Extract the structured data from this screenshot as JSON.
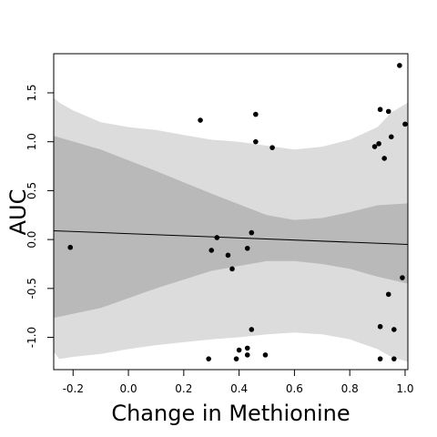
{
  "chart_data": {
    "type": "scatter",
    "title": "",
    "xlabel": "Change in Methionine",
    "ylabel": "AUC",
    "xlim": [
      -0.27,
      1.01
    ],
    "ylim": [
      -1.33,
      1.9
    ],
    "x_ticks": [
      -0.2,
      0.0,
      0.2,
      0.4,
      0.6,
      0.8,
      1.0
    ],
    "x_tick_labels": [
      "-0.2",
      "0.0",
      "0.2",
      "0.4",
      "0.6",
      "0.8",
      "1.0"
    ],
    "y_ticks": [
      -1.0,
      -0.5,
      0.0,
      0.5,
      1.0,
      1.5
    ],
    "y_tick_labels": [
      "-1.0",
      "-0.5",
      "0.0",
      "0.5",
      "1.0",
      "1.5"
    ],
    "grid": false,
    "legend": "none",
    "colors": {
      "outer_band": "#dcdcdc",
      "inner_band": "#b9b9b9",
      "points": "#000000",
      "trend_line": "#000000"
    },
    "trend_line": {
      "x": [
        -0.27,
        1.01
      ],
      "y": [
        0.09,
        -0.05
      ]
    },
    "inner_band": {
      "x": [
        -0.27,
        -0.1,
        0.1,
        0.3,
        0.5,
        0.6,
        0.7,
        0.8,
        0.9,
        1.01
      ],
      "upper": [
        1.06,
        0.92,
        0.7,
        0.47,
        0.25,
        0.2,
        0.22,
        0.28,
        0.35,
        0.37
      ],
      "lower": [
        -0.8,
        -0.7,
        -0.5,
        -0.32,
        -0.22,
        -0.22,
        -0.25,
        -0.3,
        -0.38,
        -0.45
      ]
    },
    "outer_band": {
      "x": [
        -0.27,
        -0.25,
        -0.2,
        -0.1,
        0.0,
        0.1,
        0.2,
        0.3,
        0.4,
        0.5,
        0.6,
        0.7,
        0.8,
        0.9,
        0.95,
        1.01
      ],
      "upper": [
        1.45,
        1.4,
        1.32,
        1.2,
        1.15,
        1.12,
        1.07,
        1.02,
        1.0,
        0.96,
        0.92,
        0.95,
        1.02,
        1.15,
        1.3,
        1.4
      ],
      "lower": [
        -1.15,
        -1.22,
        -1.2,
        -1.17,
        -1.12,
        -1.08,
        -1.05,
        -1.02,
        -1.0,
        -0.97,
        -0.95,
        -0.97,
        -1.02,
        -1.12,
        -1.2,
        -1.25
      ]
    },
    "points": [
      {
        "x": -0.21,
        "y": -0.08
      },
      {
        "x": 0.26,
        "y": 1.22
      },
      {
        "x": 0.46,
        "y": 1.28
      },
      {
        "x": 0.46,
        "y": 1.0
      },
      {
        "x": 0.52,
        "y": 0.94
      },
      {
        "x": 0.32,
        "y": 0.02
      },
      {
        "x": 0.3,
        "y": -0.11
      },
      {
        "x": 0.36,
        "y": -0.16
      },
      {
        "x": 0.375,
        "y": -0.3
      },
      {
        "x": 0.43,
        "y": -0.09
      },
      {
        "x": 0.445,
        "y": 0.07
      },
      {
        "x": 0.29,
        "y": -1.22
      },
      {
        "x": 0.39,
        "y": -1.22
      },
      {
        "x": 0.4,
        "y": -1.13
      },
      {
        "x": 0.43,
        "y": -1.11
      },
      {
        "x": 0.43,
        "y": -1.18
      },
      {
        "x": 0.445,
        "y": -0.92
      },
      {
        "x": 0.495,
        "y": -1.18
      },
      {
        "x": 0.89,
        "y": 0.95
      },
      {
        "x": 0.905,
        "y": 0.98
      },
      {
        "x": 0.91,
        "y": 1.33
      },
      {
        "x": 0.925,
        "y": 0.83
      },
      {
        "x": 0.94,
        "y": 1.31
      },
      {
        "x": 0.95,
        "y": 1.05
      },
      {
        "x": 0.98,
        "y": 1.78
      },
      {
        "x": 1.0,
        "y": 1.18
      },
      {
        "x": 0.99,
        "y": -0.39
      },
      {
        "x": 0.94,
        "y": -0.56
      },
      {
        "x": 0.91,
        "y": -0.89
      },
      {
        "x": 0.96,
        "y": -0.92
      },
      {
        "x": 0.91,
        "y": -1.22
      },
      {
        "x": 0.96,
        "y": -1.22
      }
    ]
  }
}
